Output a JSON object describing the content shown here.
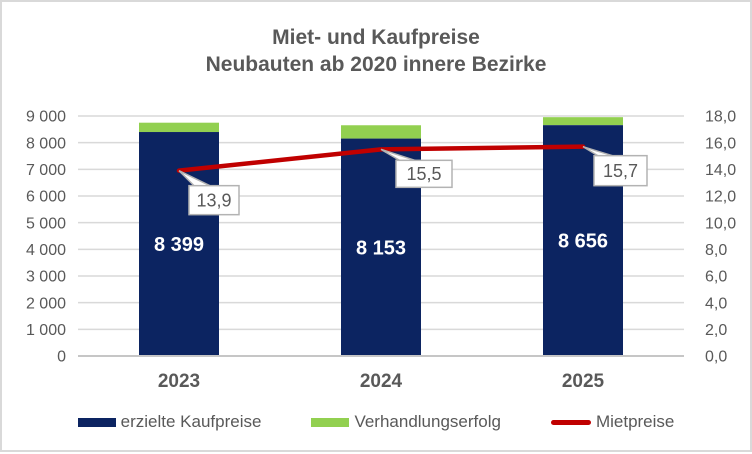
{
  "frame": {
    "background": "#ffffff",
    "border_color": "#d9d9d9"
  },
  "chart_data": {
    "type": "combo (stacked bar + line, dual axis)",
    "title_lines": [
      "Miet- und Kaufpreise",
      "Neubauten ab 2020 innere Bezirke"
    ],
    "categories": [
      "2023",
      "2024",
      "2025"
    ],
    "series": [
      {
        "name": "erzielte Kaufpreise",
        "chart_type": "bar",
        "axis": "left",
        "color": "#0c2461",
        "values": [
          8399,
          8153,
          8656
        ],
        "data_labels": [
          "8 399",
          "8 153",
          "8 656"
        ]
      },
      {
        "name": "Verhandlungserfolg",
        "chart_type": "bar",
        "axis": "left",
        "color": "#92d050",
        "values": [
          350,
          500,
          300
        ],
        "values_estimated": true
      },
      {
        "name": "Mietpreise",
        "chart_type": "line",
        "axis": "right",
        "color": "#c00000",
        "values": [
          13.9,
          15.5,
          15.7
        ],
        "data_labels": [
          "13,9",
          "15,5",
          "15,7"
        ]
      }
    ],
    "left_axis": {
      "min": 0,
      "max": 9000,
      "step": 1000,
      "tick_labels": [
        "0",
        "1 000",
        "2 000",
        "3 000",
        "4 000",
        "5 000",
        "6 000",
        "7 000",
        "8 000",
        "9 000"
      ]
    },
    "right_axis": {
      "min": 0,
      "max": 18,
      "step": 2,
      "tick_labels": [
        "0,0",
        "2,0",
        "4,0",
        "6,0",
        "8,0",
        "10,0",
        "12,0",
        "14,0",
        "16,0",
        "18,0"
      ]
    },
    "gridlines": "horizontal",
    "legend_position": "bottom"
  },
  "colors": {
    "grid": "#d9d9d9",
    "axis_line": "#c6c6c6",
    "axis_text": "#595959",
    "title_text": "#595959",
    "bar_label_text": "#ffffff",
    "callout_bg": "#ffffff",
    "callout_border": "#b3b3b3",
    "callout_text": "#595959",
    "legend_text": "#595959"
  }
}
